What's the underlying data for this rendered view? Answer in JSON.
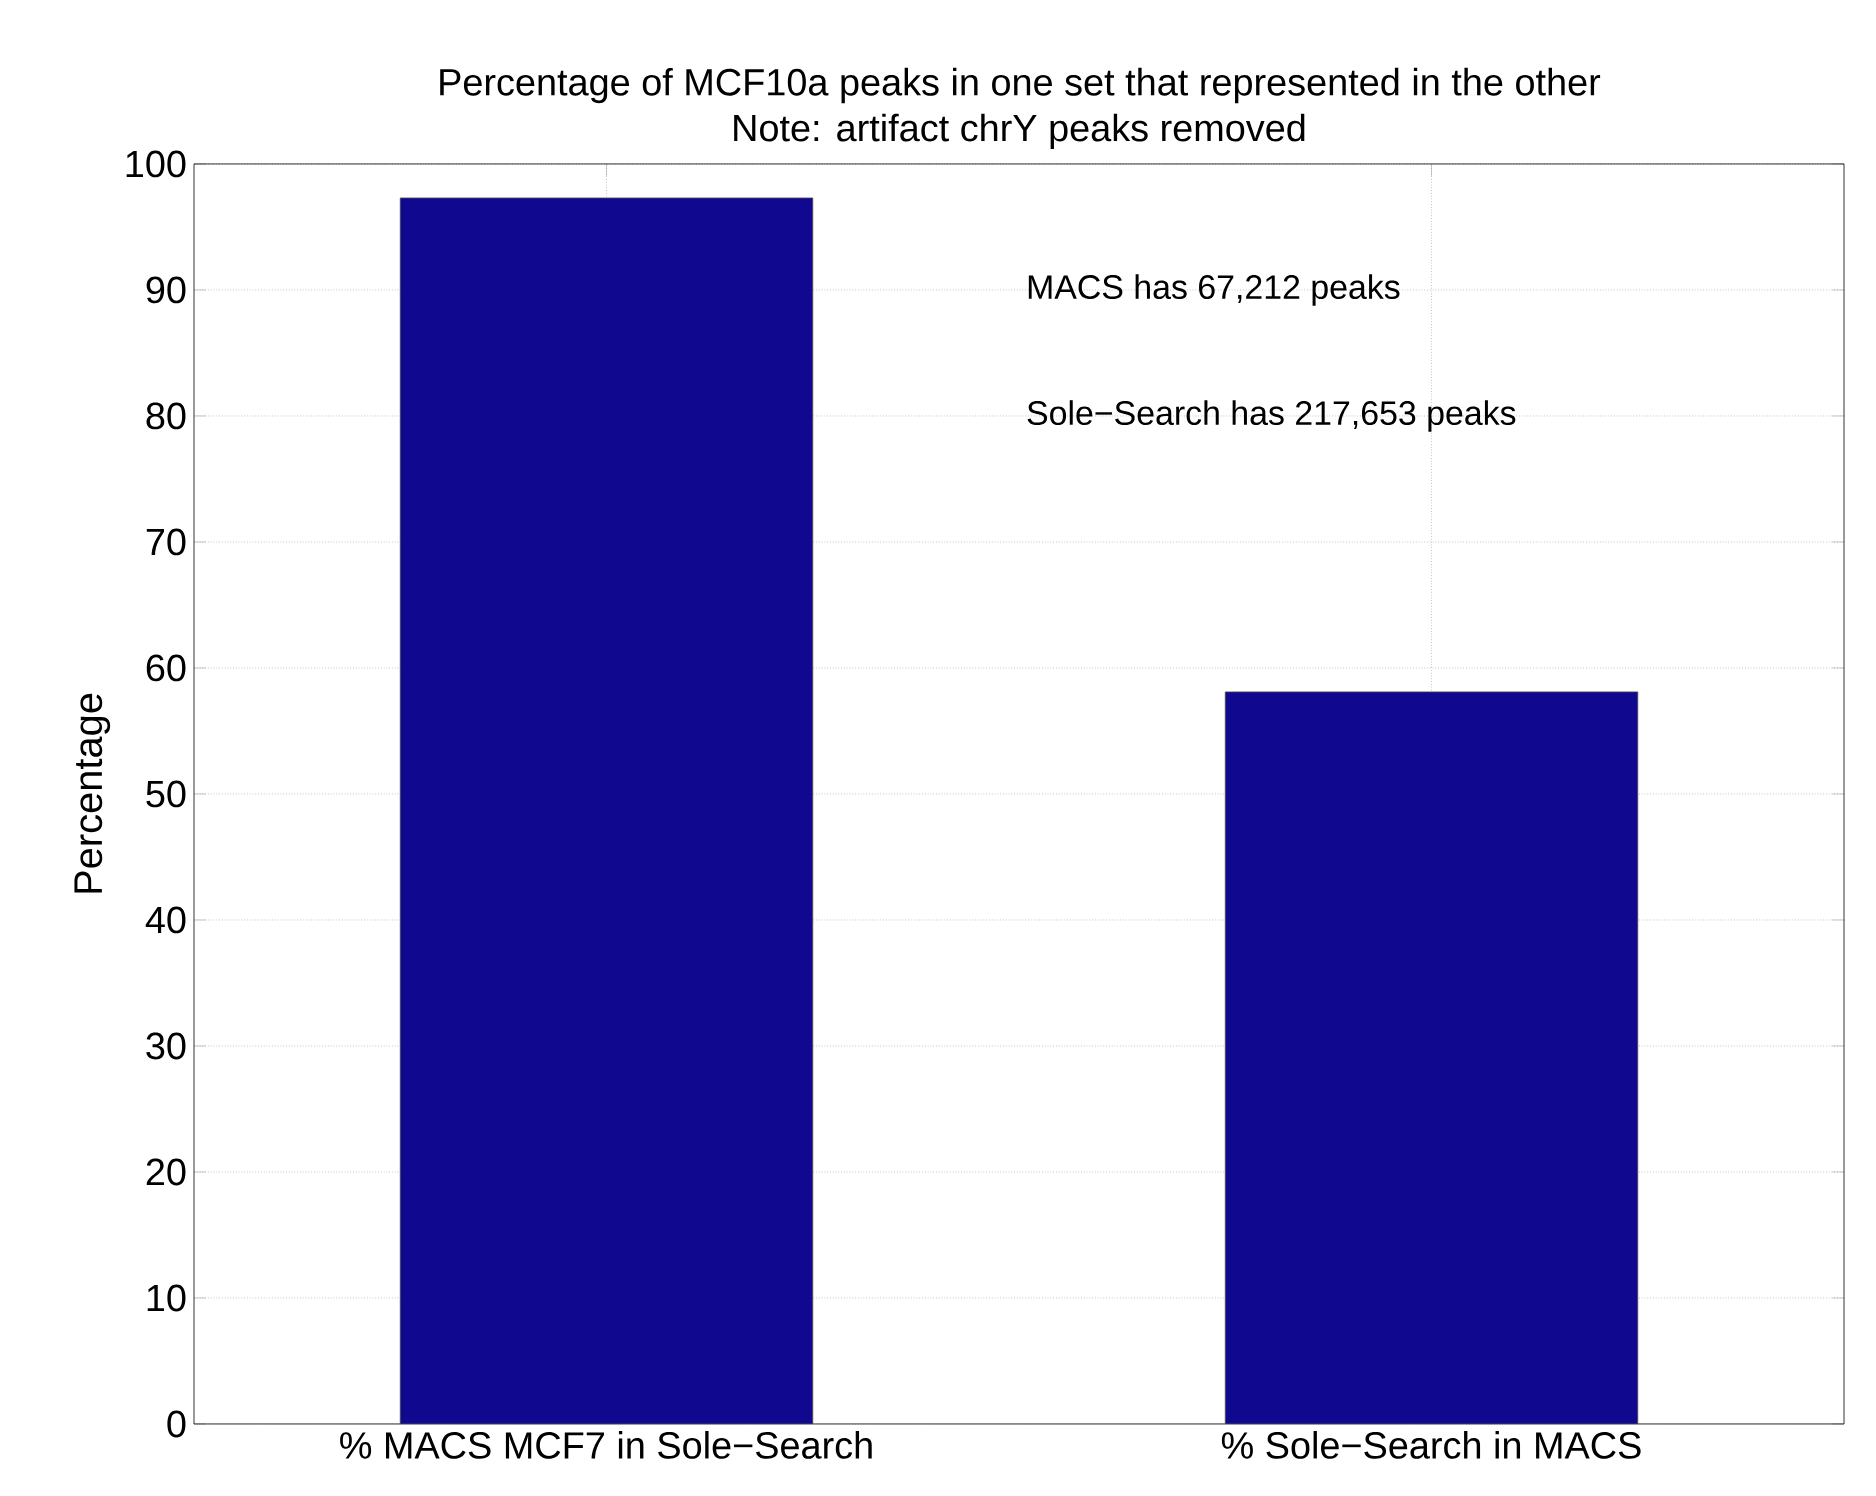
{
  "chart_data": {
    "type": "bar",
    "title": "Percentage of MCF10a peaks in one set that represented in the other",
    "subtitle": "Note: artifact chrY peaks removed",
    "ylabel": "Percentage",
    "categories": [
      "% MACS  MCF7 in Sole−Search",
      "% Sole−Search in MACS"
    ],
    "values": [
      97.3,
      58.1
    ],
    "color": "#10088e",
    "ylim": [
      0,
      100
    ],
    "yticks": [
      0,
      10,
      20,
      30,
      40,
      50,
      60,
      70,
      80,
      90,
      100
    ],
    "grid": true,
    "annotations": [
      "MACS has 67,212 peaks",
      "Sole−Search has 217,653 peaks"
    ]
  }
}
